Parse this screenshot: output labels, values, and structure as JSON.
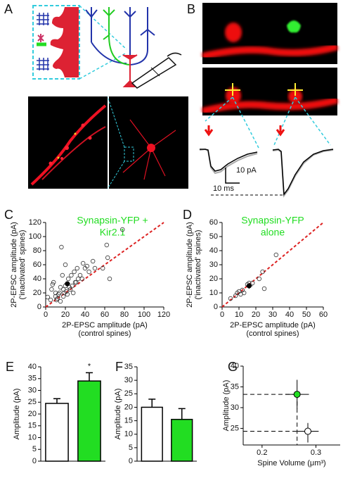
{
  "panel_labels": [
    "A",
    "B",
    "C",
    "D",
    "E",
    "F",
    "G"
  ],
  "scale_bar": {
    "current": "10 pA",
    "time": "10 ms"
  },
  "chart_data": [
    {
      "type": "scatter",
      "title": [
        "Synapsin-YFP +",
        "Kir2.1"
      ],
      "title_color": "#22dd22",
      "xlabel": [
        "2P-EPSC amplitude (pA)",
        "(control spines)"
      ],
      "ylabel": [
        "2P-EPSC amplitude (pA)",
        "('inactivated' spines)"
      ],
      "x": [
        2,
        5,
        6,
        7,
        8,
        10,
        10,
        11,
        12,
        13,
        14,
        15,
        15,
        16,
        17,
        18,
        18,
        19,
        20,
        20,
        21,
        22,
        23,
        24,
        25,
        26,
        27,
        28,
        29,
        30,
        31,
        32,
        33,
        35,
        37,
        38,
        40,
        42,
        44,
        48,
        50,
        58,
        62,
        63,
        65,
        78
      ],
      "values": [
        14,
        10,
        25,
        32,
        35,
        20,
        15,
        10,
        12,
        18,
        20,
        8,
        28,
        85,
        45,
        25,
        15,
        20,
        30,
        60,
        22,
        18,
        40,
        28,
        25,
        45,
        30,
        20,
        50,
        35,
        35,
        55,
        40,
        45,
        40,
        62,
        55,
        58,
        50,
        65,
        55,
        55,
        88,
        70,
        40,
        110
      ],
      "mean_x": 22,
      "mean_y": 33,
      "mean_xerr": 3,
      "mean_yerr": 3,
      "identity_line": true,
      "identity_color": "#dd2222",
      "xlim": [
        0,
        120
      ],
      "ylim": [
        0,
        120
      ],
      "xticks": [
        0,
        20,
        40,
        60,
        80,
        100,
        120
      ],
      "yticks": [
        0,
        20,
        40,
        60,
        80,
        100,
        120
      ]
    },
    {
      "type": "scatter",
      "title": [
        "Synapsin-YFP",
        "alone"
      ],
      "title_color": "#22dd22",
      "xlabel": [
        "2P-EPSC amplitude (pA)",
        "(control spines)"
      ],
      "ylabel": [
        "2P-EPSC amplitude (pA)",
        "('inactivated' spines)"
      ],
      "x": [
        5,
        8,
        9,
        10,
        11,
        12,
        13,
        15,
        16,
        18,
        22,
        24,
        25,
        32
      ],
      "values": [
        6,
        8,
        10,
        11,
        9,
        12,
        10,
        16,
        17,
        17,
        20,
        25,
        13,
        37
      ],
      "mean_x": 16,
      "mean_y": 15,
      "mean_xerr": 2,
      "mean_yerr": 2,
      "identity_line": true,
      "identity_color": "#dd2222",
      "xlim": [
        0,
        60
      ],
      "ylim": [
        0,
        60
      ],
      "xticks": [
        0,
        10,
        20,
        30,
        40,
        50,
        60
      ],
      "yticks": [
        0,
        10,
        20,
        30,
        40,
        50,
        60
      ]
    },
    {
      "type": "bar",
      "ylabel": [
        "Amplitude (pA)"
      ],
      "categories": [
        null,
        null
      ],
      "values": [
        24.5,
        34
      ],
      "errors": [
        2,
        3.5
      ],
      "colors": [
        "#ffffff",
        "#22dd22"
      ],
      "annotation": "*",
      "ylim": [
        0,
        40
      ],
      "yticks": [
        0,
        5,
        10,
        15,
        20,
        25,
        30,
        35,
        40
      ]
    },
    {
      "type": "bar",
      "ylabel": [
        "Amplitude (pA)"
      ],
      "categories": [
        null,
        null
      ],
      "values": [
        20,
        15.5
      ],
      "errors": [
        3,
        4
      ],
      "colors": [
        "#ffffff",
        "#22dd22"
      ],
      "ylim": [
        0,
        35
      ],
      "yticks": [
        0,
        5,
        10,
        15,
        20,
        25,
        30,
        35
      ]
    },
    {
      "type": "errorpoints",
      "xlabel": [
        "Spine Volume (μm³)"
      ],
      "ylabel": [
        "Amplitude (pA)"
      ],
      "x": [
        0.285,
        0.265
      ],
      "values": [
        24.3,
        33.2
      ],
      "xerr": [
        0.02,
        0.022
      ],
      "errors": [
        2,
        3.5
      ],
      "colors": [
        "#ffffff",
        "#22dd22"
      ],
      "guide_lines": true,
      "xlim": [
        0.165,
        0.345
      ],
      "ylim": [
        21,
        40
      ],
      "xticks": [
        0.2,
        0.3
      ],
      "yticks": [
        25,
        30,
        35,
        40
      ]
    }
  ]
}
